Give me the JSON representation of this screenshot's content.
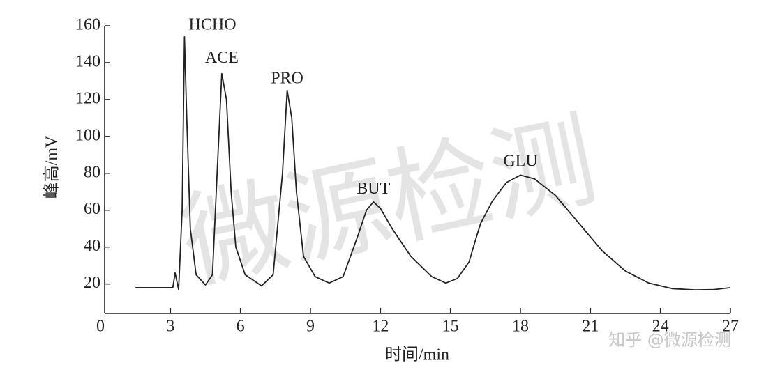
{
  "chart_data": {
    "type": "line",
    "xlabel": "时间/min",
    "ylabel": "峰高/mV",
    "xlim": [
      0,
      27
    ],
    "xticks": [
      0,
      3,
      6,
      9,
      12,
      15,
      18,
      21,
      24,
      27
    ],
    "ylim": [
      4,
      160
    ],
    "yticks": [
      20,
      40,
      60,
      80,
      100,
      120,
      140,
      160
    ],
    "grid": false,
    "color": "#222222",
    "x": [
      1.5,
      3.1,
      3.2,
      3.35,
      3.5,
      3.6,
      3.7,
      3.85,
      4.1,
      4.5,
      4.8,
      5.0,
      5.2,
      5.4,
      5.6,
      5.8,
      6.2,
      6.9,
      7.4,
      7.8,
      8.0,
      8.2,
      8.4,
      8.7,
      9.2,
      9.8,
      10.4,
      11.0,
      11.4,
      11.7,
      12.0,
      12.5,
      13.3,
      14.2,
      14.8,
      15.3,
      15.8,
      16.1,
      16.3,
      16.8,
      17.4,
      18.0,
      18.6,
      19.5,
      20.5,
      21.5,
      22.5,
      23.5,
      24.5,
      25.5,
      26.3,
      27.0
    ],
    "y": [
      18,
      18,
      26,
      17,
      60,
      154,
      110,
      50,
      25,
      19.5,
      25,
      80,
      134,
      120,
      70,
      40,
      25,
      19,
      25,
      80,
      125,
      110,
      70,
      35,
      24,
      20.5,
      24,
      45,
      60,
      64.5,
      61,
      50,
      35,
      24,
      20.5,
      23,
      32,
      45,
      53,
      65,
      75,
      79,
      77,
      68,
      53,
      38,
      27,
      20.5,
      17.5,
      16.8,
      17,
      18
    ],
    "annotations": [
      {
        "text": "HCHO",
        "x": 4.8,
        "y": 160
      },
      {
        "text": "ACE",
        "x": 5.2,
        "y": 142
      },
      {
        "text": "PRO",
        "x": 8.0,
        "y": 131
      },
      {
        "text": "BUT",
        "x": 11.7,
        "y": 71
      },
      {
        "text": "GLU",
        "x": 18.0,
        "y": 86
      }
    ],
    "watermark": "微源检测",
    "credit": "知乎 @微源检测"
  }
}
